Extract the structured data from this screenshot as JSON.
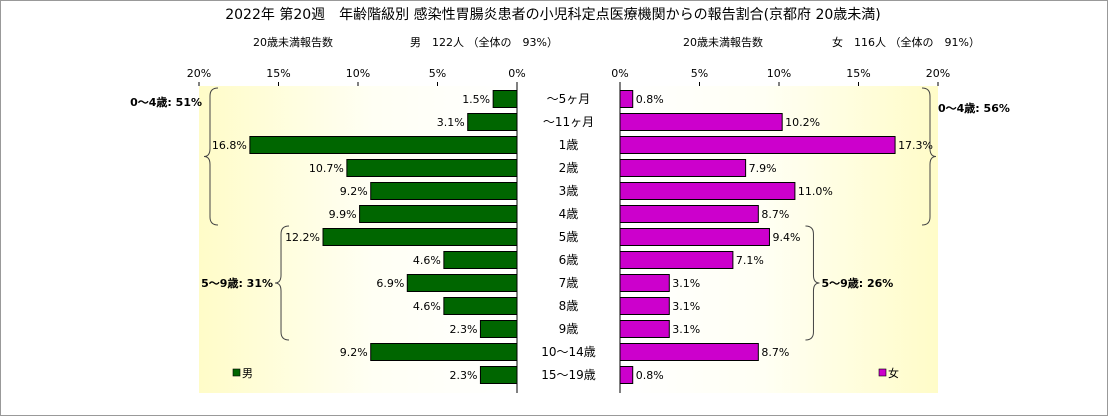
{
  "chart_data": {
    "type": "bar",
    "title": "2022年 第20週　年齢階級別 感染性胃腸炎患者の小児科定点医療機関からの報告割合(京都府 20歳未満)",
    "categories": [
      "～5ヶ月",
      "～11ヶ月",
      "1歳",
      "2歳",
      "3歳",
      "4歳",
      "5歳",
      "6歳",
      "7歳",
      "8歳",
      "9歳",
      "10～14歳",
      "15～19歳"
    ],
    "xlim": [
      0,
      20
    ],
    "unit": "%",
    "ticks": [
      {
        "value": 0,
        "label": "0%"
      },
      {
        "value": 5,
        "label": "5%"
      },
      {
        "value": 10,
        "label": "10%"
      },
      {
        "value": 15,
        "label": "15%"
      },
      {
        "value": 20,
        "label": "20%"
      }
    ],
    "series": [
      {
        "name": "男",
        "side": "left",
        "color": "#006600",
        "header_label": "20歳未満報告数",
        "header_summary": "男　122人 （全体の　93%）",
        "values": [
          1.5,
          3.1,
          16.8,
          10.7,
          9.2,
          9.9,
          12.2,
          4.6,
          6.9,
          4.6,
          2.3,
          9.2,
          2.3
        ],
        "value_labels": [
          "1.5%",
          "3.1%",
          "16.8%",
          "10.7%",
          "9.2%",
          "9.9%",
          "12.2%",
          "4.6%",
          "6.9%",
          "4.6%",
          "2.3%",
          "9.2%",
          "2.3%"
        ],
        "groups": [
          {
            "label": "0～4歳: 51%",
            "from": 0,
            "to": 5
          },
          {
            "label": "5～9歳: 31%",
            "from": 6,
            "to": 10
          }
        ]
      },
      {
        "name": "女",
        "side": "right",
        "color": "#cc00cc",
        "header_label": "20歳未満報告数",
        "header_summary": "女　116人 （全体の　91%）",
        "values": [
          0.8,
          10.2,
          17.3,
          7.9,
          11.0,
          8.7,
          9.4,
          7.1,
          3.1,
          3.1,
          3.1,
          8.7,
          0.8
        ],
        "value_labels": [
          "0.8%",
          "10.2%",
          "17.3%",
          "7.9%",
          "11.0%",
          "8.7%",
          "9.4%",
          "7.1%",
          "3.1%",
          "3.1%",
          "3.1%",
          "8.7%",
          "0.8%"
        ],
        "groups": [
          {
            "label": "0～4歳: 56%",
            "from": 0,
            "to": 5
          },
          {
            "label": "5～9歳: 26%",
            "from": 6,
            "to": 10
          }
        ]
      }
    ]
  }
}
